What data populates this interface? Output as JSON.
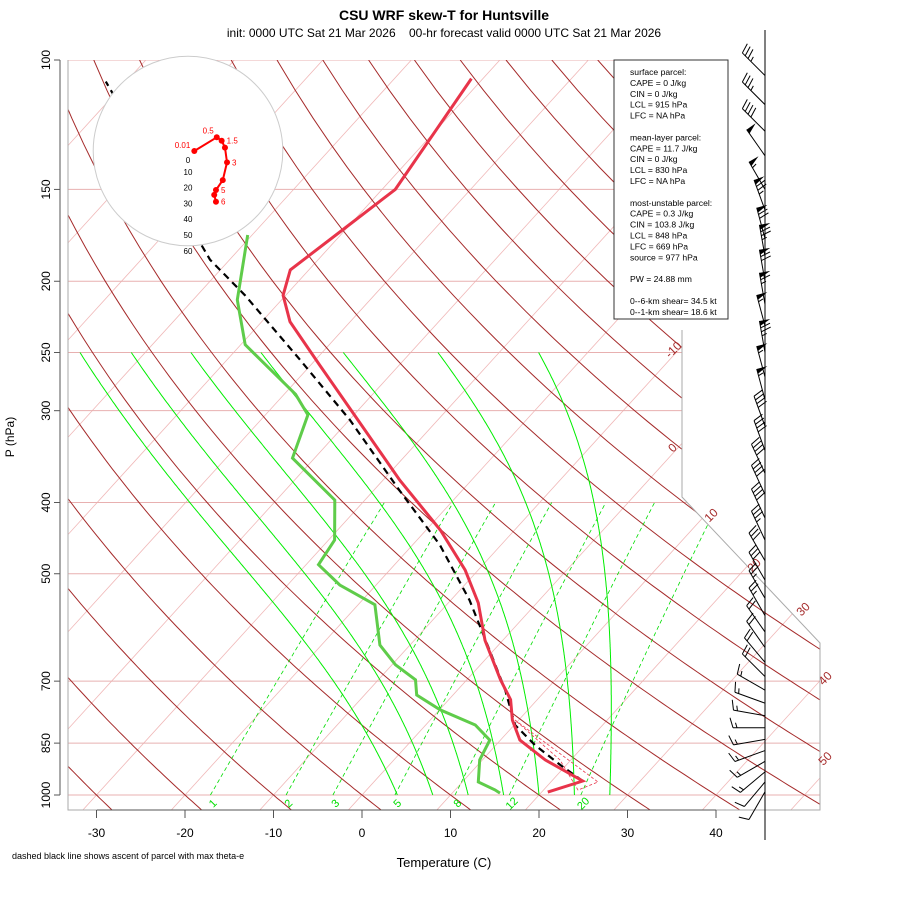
{
  "chart_data": {
    "type": "skew-t",
    "title": "CSU WRF skew-T for Huntsville",
    "subtitle": "init: 0000 UTC Sat 21 Mar 2026    00-hr forecast valid 0000 UTC Sat 21 Mar 2026",
    "xlabel": "Temperature (C)",
    "ylabel": "P (hPa)",
    "footnote": "dashed black line shows ascent of parcel with max theta-e",
    "x_ticks": [
      -30,
      -20,
      -10,
      0,
      10,
      20,
      30,
      40
    ],
    "p_ticks": [
      100,
      150,
      200,
      250,
      300,
      400,
      500,
      700,
      850,
      1000
    ],
    "isotherm_labels": [
      -10,
      0,
      10,
      20,
      30,
      40,
      50
    ],
    "mixing_ratio_labels": [
      1,
      2,
      3,
      5,
      8,
      12,
      20
    ],
    "colors": {
      "temperature": "#e8344a",
      "dewpoint": "#5fcc4a",
      "parcel": "#000000",
      "dry_adiabat": "#a52a2a",
      "isotherm": "#f0b8b8",
      "moist_adiabat": "#00ee00",
      "mixing_ratio": "#00dd00",
      "hodograph": "#ff0000"
    },
    "temperature": [
      [
        991,
        20.7
      ],
      [
        957,
        23.5
      ],
      [
        896,
        17.1
      ],
      [
        842,
        12.2
      ],
      [
        791,
        9.3
      ],
      [
        742,
        7.0
      ],
      [
        697,
        3.8
      ],
      [
        616,
        -2.0
      ],
      [
        548,
        -6.6
      ],
      [
        494,
        -11.5
      ],
      [
        436,
        -18.4
      ],
      [
        373,
        -28.1
      ],
      [
        299,
        -40.9
      ],
      [
        260,
        -49.0
      ],
      [
        227,
        -56.8
      ],
      [
        209,
        -60.3
      ],
      [
        193,
        -62.1
      ],
      [
        169,
        -60.2
      ],
      [
        150,
        -58.5
      ],
      [
        123,
        -60.1
      ],
      [
        106,
        -61.3
      ]
    ],
    "dewpoint": [
      [
        994,
        15.4
      ],
      [
        984,
        14.5
      ],
      [
        960,
        11.8
      ],
      [
        896,
        9.7
      ],
      [
        842,
        8.8
      ],
      [
        803,
        5.6
      ],
      [
        766,
        0.1
      ],
      [
        731,
        -4.1
      ],
      [
        697,
        -5.8
      ],
      [
        665,
        -9.6
      ],
      [
        625,
        -13.4
      ],
      [
        551,
        -18.1
      ],
      [
        518,
        -24.1
      ],
      [
        486,
        -28.6
      ],
      [
        450,
        -29.3
      ],
      [
        397,
        -33.4
      ],
      [
        348,
        -42.5
      ],
      [
        304,
        -45.2
      ],
      [
        285,
        -48.7
      ],
      [
        244,
        -59.5
      ],
      [
        212,
        -65.0
      ],
      [
        173,
        -70.5
      ]
    ],
    "parcel": [
      [
        957,
        23.5
      ],
      [
        910,
        19.3
      ],
      [
        855,
        14.4
      ],
      [
        803,
        10.1
      ],
      [
        720,
        5.4
      ],
      [
        635,
        -0.5
      ],
      [
        543,
        -7.9
      ],
      [
        457,
        -16.9
      ],
      [
        385,
        -27.1
      ],
      [
        309,
        -39.9
      ],
      [
        256,
        -51.7
      ],
      [
        209,
        -64.6
      ],
      [
        187,
        -72.2
      ],
      [
        107,
        -102.3
      ]
    ],
    "winds": [
      [
        105,
        315,
        35
      ],
      [
        115,
        315,
        35
      ],
      [
        125,
        315,
        40
      ],
      [
        135,
        325,
        50
      ],
      [
        150,
        330,
        55
      ],
      [
        160,
        340,
        75
      ],
      [
        175,
        345,
        70
      ],
      [
        185,
        350,
        75
      ],
      [
        200,
        350,
        70
      ],
      [
        215,
        350,
        65
      ],
      [
        230,
        345,
        55
      ],
      [
        250,
        350,
        75
      ],
      [
        270,
        345,
        55
      ],
      [
        290,
        345,
        55
      ],
      [
        315,
        340,
        40
      ],
      [
        340,
        340,
        40
      ],
      [
        365,
        335,
        40
      ],
      [
        390,
        335,
        40
      ],
      [
        420,
        335,
        40
      ],
      [
        450,
        335,
        35
      ],
      [
        480,
        330,
        30
      ],
      [
        510,
        330,
        30
      ],
      [
        540,
        330,
        25
      ],
      [
        570,
        330,
        25
      ],
      [
        600,
        325,
        20
      ],
      [
        630,
        325,
        20
      ],
      [
        660,
        320,
        20
      ],
      [
        690,
        315,
        20
      ],
      [
        720,
        300,
        15
      ],
      [
        750,
        290,
        15
      ],
      [
        780,
        280,
        15
      ],
      [
        810,
        270,
        15
      ],
      [
        840,
        260,
        15
      ],
      [
        870,
        250,
        15
      ],
      [
        900,
        240,
        15
      ],
      [
        930,
        230,
        15
      ],
      [
        960,
        220,
        10
      ],
      [
        990,
        210,
        10
      ]
    ],
    "hodograph": {
      "ring_labels": [
        0,
        10,
        20,
        30,
        40,
        50,
        60
      ],
      "points": [
        [
          4.0,
          0.0,
          "0.01"
        ],
        [
          18.2,
          8.7,
          "0.5"
        ],
        [
          21.3,
          6.5,
          "1.5"
        ],
        [
          23.4,
          2.1,
          ""
        ],
        [
          24.7,
          -7.2,
          "3"
        ],
        [
          22.0,
          -18.4,
          ""
        ],
        [
          17.7,
          -24.7,
          "5"
        ],
        [
          16.6,
          -27.8,
          ""
        ],
        [
          17.7,
          -32.1,
          "6"
        ]
      ]
    },
    "legend": [
      "surface parcel:",
      "CAPE = 0 J/kg",
      "CIN = 0 J/kg",
      "LCL = 915 hPa",
      "LFC = NA hPa",
      "",
      "mean-layer parcel:",
      "CAPE = 11.7 J/kg",
      "CIN = 0 J/kg",
      "LCL = 830 hPa",
      "LFC = NA hPa",
      "",
      "most-unstable parcel:",
      "CAPE = 0.3 J/kg",
      "CIN = 103.8 J/kg",
      "LCL = 848 hPa",
      "LFC = 669 hPa",
      "source = 977 hPa",
      "",
      "PW =  24.88 mm",
      "",
      "0--6-km shear= 34.5 kt",
      "0--1-km shear= 18.6 kt"
    ]
  }
}
